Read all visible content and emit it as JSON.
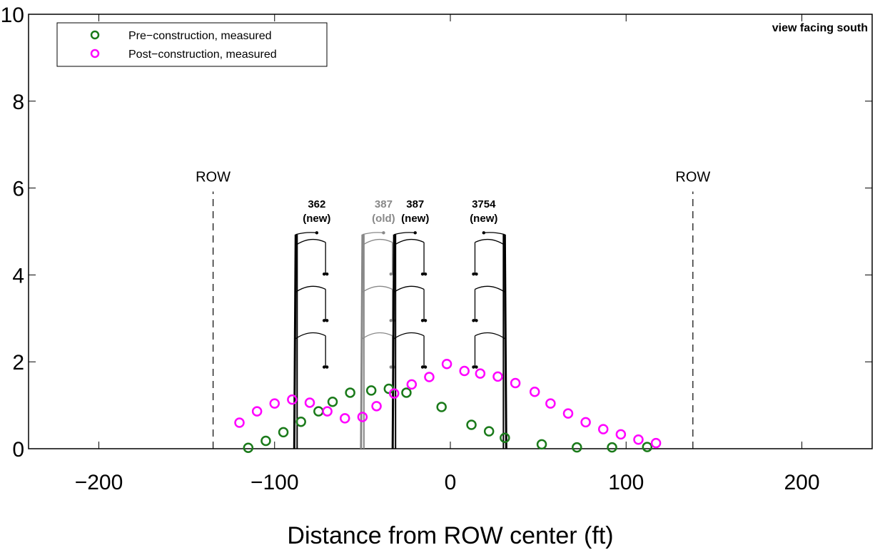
{
  "chart_data": {
    "type": "scatter",
    "title": "",
    "xlabel": "Distance from ROW center (ft)",
    "ylabel": "",
    "xlim": [
      -240,
      240
    ],
    "ylim": [
      0,
      10
    ],
    "x_ticks": [
      -200,
      -100,
      0,
      100,
      200
    ],
    "x_tick_labels": [
      "−200",
      "−100",
      "0",
      "100",
      "200"
    ],
    "y_ticks": [
      0,
      2,
      4,
      6,
      8,
      10
    ],
    "y_tick_labels": [
      "0",
      "2",
      "4",
      "6",
      "8",
      "10"
    ],
    "grid": false,
    "legend_position": "top-left",
    "annotation": "view facing south",
    "row_lines": [
      {
        "x": -135,
        "label": "ROW"
      },
      {
        "x": 138,
        "label": "ROW"
      }
    ],
    "towers": [
      {
        "x": -88,
        "label_line1": "362",
        "label_line2": "(new)",
        "color": "#000000",
        "side": "right"
      },
      {
        "x": -50,
        "label_line1": "387",
        "label_line2": "(old)",
        "color": "#888888",
        "side": "right"
      },
      {
        "x": -32,
        "label_line1": "387",
        "label_line2": "(new)",
        "color": "#000000",
        "side": "right"
      },
      {
        "x": 31,
        "label_line1": "3754",
        "label_line2": "(new)",
        "color": "#000000",
        "side": "left"
      }
    ],
    "series": [
      {
        "name": "Pre−construction, measured",
        "color": "#1a7a1a",
        "x": [
          -115,
          -105,
          -95,
          -85,
          -75,
          -67,
          -57,
          -45,
          -35,
          -25,
          -5,
          12,
          22,
          31,
          52,
          72,
          92,
          112
        ],
        "y": [
          0.02,
          0.18,
          0.38,
          0.62,
          0.86,
          1.08,
          1.29,
          1.34,
          1.38,
          1.29,
          0.96,
          0.55,
          0.4,
          0.25,
          0.1,
          0.03,
          0.03,
          0.04
        ]
      },
      {
        "name": "Post−construction, measured",
        "color": "#ff00ff",
        "x": [
          -120,
          -110,
          -100,
          -90,
          -80,
          -70,
          -60,
          -50,
          -42,
          -32,
          -22,
          -12,
          -2,
          8,
          17,
          27,
          37,
          48,
          57,
          67,
          77,
          87,
          97,
          107,
          117
        ],
        "y": [
          0.6,
          0.86,
          1.04,
          1.13,
          1.06,
          0.86,
          0.7,
          0.73,
          0.98,
          1.27,
          1.48,
          1.65,
          1.95,
          1.79,
          1.73,
          1.66,
          1.51,
          1.31,
          1.04,
          0.81,
          0.61,
          0.45,
          0.33,
          0.21,
          0.13
        ]
      }
    ]
  }
}
